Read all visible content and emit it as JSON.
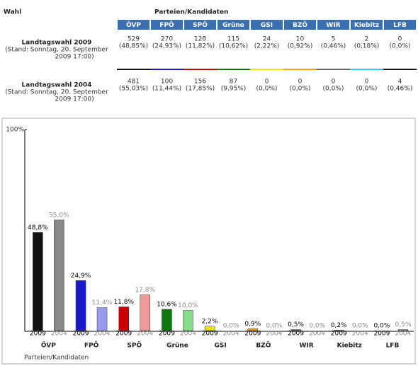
{
  "table": {
    "header": {
      "wahl": "Wahl",
      "parteien": "Parteien/Kandidaten"
    },
    "parties": [
      "ÖVP",
      "FPÖ",
      "SPÖ",
      "Grüne",
      "GSI",
      "BZÖ",
      "WIR",
      "Kiebitz",
      "LFB"
    ],
    "party_colors": [
      "#111111",
      "#1a1acc",
      "#cc0000",
      "#117711",
      "#e8e800",
      "#ff9900",
      "#666666",
      "#33ccee",
      "#111111"
    ],
    "rows": [
      {
        "label": "Landtagswahl 2009",
        "stand": [
          "(Stand: Sonntag, 20. September",
          "2009 17:00)"
        ],
        "votes": [
          "529",
          "270",
          "128",
          "115",
          "24",
          "10",
          "5",
          "2",
          "0"
        ],
        "pct": [
          "(48,85%)",
          "(24,93%)",
          "(11,82%)",
          "(10,62%)",
          "(2,22%)",
          "(0,92%)",
          "(0,46%)",
          "(0,18%)",
          "(0,0%)"
        ]
      },
      {
        "label": "Landtagswahl 2004",
        "stand": [
          "(Stand: Sonntag, 20. September",
          "2009 17:00)"
        ],
        "votes": [
          "481",
          "100",
          "156",
          "87",
          "0",
          "0",
          "0",
          "0",
          "4"
        ],
        "pct": [
          "(55,03%)",
          "(11,44%)",
          "(17,85%)",
          "(9,95%)",
          "(0,0%)",
          "(0,0%)",
          "(0,0%)",
          "(0,0%)",
          "(0,46%)"
        ]
      }
    ]
  },
  "chart_data": {
    "type": "bar",
    "x_label": "Parteien/Kandidaten",
    "categories": [
      "ÖVP",
      "FPÖ",
      "SPÖ",
      "Grüne",
      "GSI",
      "BZÖ",
      "WIR",
      "Kiebitz",
      "LFB"
    ],
    "ylim": [
      0,
      100
    ],
    "yticks": [
      {
        "value": 100,
        "label": "100%"
      }
    ],
    "series": [
      {
        "name": "2009",
        "colors": [
          "#111111",
          "#1a1acc",
          "#cc0000",
          "#117711",
          "#e8e800",
          "#ff9900",
          "#666666",
          "#33ccee",
          "#111111"
        ],
        "values": [
          48.8,
          24.9,
          11.8,
          10.6,
          2.2,
          0.9,
          0.5,
          0.2,
          0.0
        ],
        "value_labels": [
          "48,8%",
          "24,9%",
          "11,8%",
          "10,6%",
          "2,2%",
          "0,9%",
          "0,5%",
          "0,2%",
          "0,0%"
        ]
      },
      {
        "name": "2004",
        "colors": [
          "#888888",
          "#9999ee",
          "#ee9999",
          "#88dd88",
          "#f0f088",
          "#ffcc88",
          "#aaaaaa",
          "#99e6f5",
          "#888888"
        ],
        "values": [
          55.0,
          11.4,
          17.8,
          10.0,
          0.0,
          0.0,
          0.0,
          0.0,
          0.5
        ],
        "value_labels": [
          "55,0%",
          "11,4%",
          "17,8%",
          "10,0%",
          "0,0%",
          "0,0%",
          "0,0%",
          "0,0%",
          "0,5%"
        ]
      }
    ]
  }
}
